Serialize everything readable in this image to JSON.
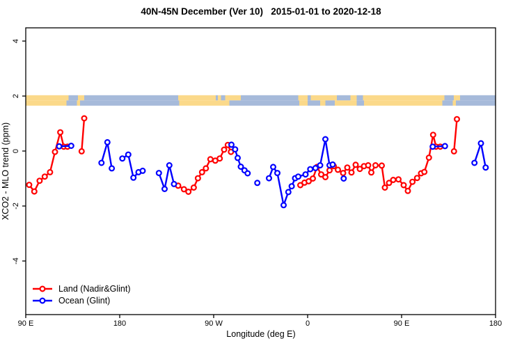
{
  "title": "40N-45N December (Ver 10)   2015-01-01 to 2020-12-18",
  "legend": {
    "items": [
      {
        "label": "Land (Nadir&Glint)",
        "color": "#FF0000"
      },
      {
        "label": "Ocean (Glint)",
        "color": "#0000FF"
      }
    ]
  },
  "chart_data": {
    "type": "line",
    "title": "40N-45N December (Ver 10)   2015-01-01 to 2020-12-18",
    "xlabel": "Longitude (deg E)",
    "ylabel": "XCO2 - MLO trend (ppm)",
    "grid": false,
    "legend_position": "bottom-left-inside",
    "x_axis": {
      "min": 90,
      "max": 540,
      "note": "longitude axis wraps: 90E to 180, 90W, 0, 90E, 180",
      "ticks": [
        {
          "deg": 90,
          "label": "90 E"
        },
        {
          "deg": 180,
          "label": "180"
        },
        {
          "deg": 270,
          "label": "90 W"
        },
        {
          "deg": 360,
          "label": "0"
        },
        {
          "deg": 450,
          "label": "90 E"
        },
        {
          "deg": 540,
          "label": "180"
        }
      ]
    },
    "y_axis": {
      "min": -5.9,
      "max": 4.5,
      "ticks": [
        4,
        2,
        0,
        -2,
        -4
      ]
    },
    "map_band": {
      "note": "land/ocean mask strip for 40N-45N drawn at y ~ 1.65 to 2.03 ppm",
      "val_top": 2.03,
      "val_bottom": 1.65,
      "colors": {
        "land": "#FBD98A",
        "ocean": "#A6BADA"
      },
      "rows": [
        [
          [
            90,
            131,
            "land"
          ],
          [
            131,
            140,
            "ocean"
          ],
          [
            140,
            146,
            "land"
          ],
          [
            146,
            236,
            "ocean"
          ],
          [
            236,
            272,
            "land"
          ],
          [
            272,
            274,
            "ocean"
          ],
          [
            274,
            277,
            "land"
          ],
          [
            277,
            281,
            "ocean"
          ],
          [
            281,
            296,
            "land"
          ],
          [
            296,
            351,
            "ocean"
          ],
          [
            351,
            360,
            "land"
          ],
          [
            360,
            363,
            "ocean"
          ],
          [
            363,
            388,
            "land"
          ],
          [
            388,
            401,
            "ocean"
          ],
          [
            401,
            407,
            "land"
          ],
          [
            407,
            413,
            "ocean"
          ],
          [
            413,
            491,
            "land"
          ],
          [
            491,
            500,
            "ocean"
          ],
          [
            500,
            506,
            "land"
          ],
          [
            506,
            540,
            "ocean"
          ]
        ],
        [
          [
            90,
            129,
            "land"
          ],
          [
            129,
            139,
            "ocean"
          ],
          [
            139,
            142,
            "land"
          ],
          [
            142,
            237,
            "ocean"
          ],
          [
            237,
            285,
            "land"
          ],
          [
            285,
            352,
            "ocean"
          ],
          [
            352,
            360,
            "land"
          ],
          [
            360,
            372,
            "ocean"
          ],
          [
            372,
            377,
            "land"
          ],
          [
            377,
            386,
            "ocean"
          ],
          [
            386,
            407,
            "land"
          ],
          [
            407,
            414,
            "ocean"
          ],
          [
            414,
            489,
            "land"
          ],
          [
            489,
            499,
            "ocean"
          ],
          [
            499,
            502,
            "land"
          ],
          [
            502,
            540,
            "ocean"
          ]
        ]
      ]
    },
    "series": [
      {
        "name": "land",
        "label": "Land (Nadir&Glint)",
        "color": "#FF0000",
        "marker": "open-circle",
        "groups": [
          [
            [
              93.3,
              -1.23
            ],
            [
              98.2,
              -1.47
            ],
            [
              103.3,
              -1.08
            ],
            [
              108.2,
              -0.93
            ],
            [
              113.3,
              -0.77
            ],
            [
              118.0,
              -0.03
            ],
            [
              123.1,
              0.68
            ],
            [
              126.4,
              0.16
            ],
            [
              130.0,
              0.16
            ]
          ],
          [
            [
              143.5,
              -0.01
            ],
            [
              146.0,
              1.19
            ]
          ],
          [
            [
              236.0,
              -1.26
            ],
            [
              241.5,
              -1.39
            ],
            [
              245.8,
              -1.48
            ],
            [
              250.9,
              -1.33
            ],
            [
              254.9,
              -0.99
            ],
            [
              258.9,
              -0.77
            ],
            [
              262.5,
              -0.63
            ],
            [
              266.9,
              -0.3
            ],
            [
              271.5,
              -0.35
            ],
            [
              275.8,
              -0.27
            ],
            [
              280.0,
              0.05
            ],
            [
              283.5,
              0.22
            ],
            [
              286.5,
              -0.03
            ]
          ],
          [
            [
              353.0,
              -1.24
            ],
            [
              357.0,
              -1.15
            ],
            [
              361.0,
              -1.1
            ],
            [
              365.0,
              -1.0
            ],
            [
              369.0,
              -0.58
            ],
            [
              373.0,
              -0.85
            ],
            [
              377.0,
              -0.95
            ],
            [
              381.0,
              -0.7
            ],
            [
              385.0,
              -0.55
            ],
            [
              389.0,
              -0.68
            ],
            [
              394.0,
              -0.8
            ],
            [
              398.0,
              -0.6
            ],
            [
              402.0,
              -0.78
            ],
            [
              406.0,
              -0.5
            ],
            [
              410.0,
              -0.65
            ],
            [
              414.0,
              -0.55
            ],
            [
              418.0,
              -0.52
            ],
            [
              421.0,
              -0.78
            ],
            [
              425.0,
              -0.52
            ],
            [
              431.0,
              -0.53
            ],
            [
              434.0,
              -1.33
            ],
            [
              438.0,
              -1.16
            ],
            [
              442.0,
              -1.05
            ],
            [
              447.0,
              -1.03
            ],
            [
              452.0,
              -1.24
            ],
            [
              456.0,
              -1.45
            ],
            [
              460.4,
              -1.12
            ],
            [
              464.9,
              -0.98
            ],
            [
              468.7,
              -0.81
            ],
            [
              471.8,
              -0.76
            ],
            [
              476.2,
              -0.24
            ],
            [
              480.2,
              0.59
            ],
            [
              483.0,
              0.16
            ],
            [
              487.0,
              0.16
            ]
          ],
          [
            [
              500.2,
              -0.01
            ],
            [
              503.0,
              1.16
            ]
          ]
        ]
      },
      {
        "name": "ocean",
        "label": "Ocean (Glint)",
        "color": "#0000FF",
        "marker": "open-circle",
        "groups": [
          [
            [
              122.0,
              0.17
            ],
            [
              133.5,
              0.19
            ]
          ],
          [
            [
              162.5,
              -0.43
            ],
            [
              168.2,
              0.32
            ],
            [
              172.4,
              -0.63
            ]
          ],
          [
            [
              182.5,
              -0.27
            ],
            [
              188.2,
              -0.13
            ],
            [
              193.1,
              -0.97
            ],
            [
              198.0,
              -0.77
            ],
            [
              202.0,
              -0.72
            ]
          ],
          [
            [
              217.5,
              -0.8
            ],
            [
              223.0,
              -1.38
            ],
            [
              227.5,
              -0.52
            ],
            [
              232.0,
              -1.2
            ]
          ],
          [
            [
              287.0,
              0.23
            ],
            [
              290.5,
              0.06
            ],
            [
              293.0,
              -0.25
            ],
            [
              296.0,
              -0.57
            ],
            [
              299.5,
              -0.7
            ],
            [
              302.5,
              -0.81
            ]
          ],
          [
            [
              311.8,
              -1.16
            ]
          ],
          [
            [
              323.0,
              -0.99
            ],
            [
              327.0,
              -0.58
            ],
            [
              331.0,
              -0.8
            ],
            [
              337.0,
              -1.97
            ],
            [
              341.5,
              -1.49
            ],
            [
              344.7,
              -1.28
            ],
            [
              348.0,
              -0.99
            ],
            [
              351.0,
              -0.93
            ],
            [
              358.0,
              -0.85
            ],
            [
              362.5,
              -0.66
            ],
            [
              367.5,
              -0.62
            ],
            [
              372.0,
              -0.52
            ],
            [
              377.0,
              0.43
            ],
            [
              381.0,
              -0.52
            ],
            [
              384.0,
              -0.49
            ]
          ],
          [
            [
              394.5,
              -1.0
            ]
          ],
          [
            [
              479.8,
              0.16
            ],
            [
              491.5,
              0.18
            ]
          ],
          [
            [
              519.8,
              -0.43
            ],
            [
              526.0,
              0.28
            ],
            [
              530.5,
              -0.6
            ]
          ]
        ]
      }
    ]
  }
}
